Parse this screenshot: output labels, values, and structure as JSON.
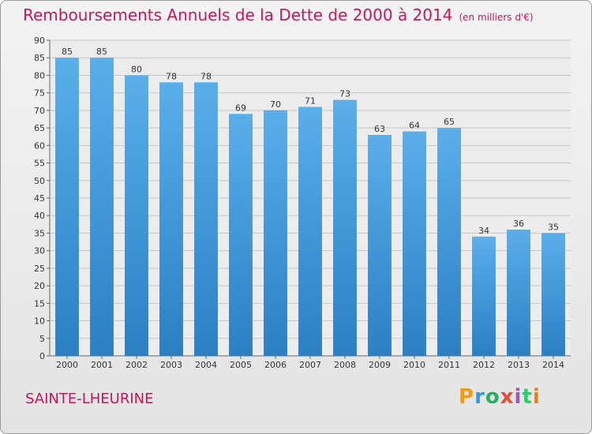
{
  "title": "Remboursements Annuels de la Dette de 2000 à 2014",
  "unit": "(en milliers d'€)",
  "town": "SAINTE-LHEURINE",
  "logo": {
    "text": "Proxiti",
    "colors": [
      "#f39c12",
      "#3498db",
      "#27ae60",
      "#e74c3c",
      "#9b59b6",
      "#2ecc71",
      "#e67e22"
    ]
  },
  "colors": {
    "bar": "#4a9de0",
    "title": "#c2185b"
  },
  "chart_data": {
    "type": "bar",
    "categories": [
      "2000",
      "2001",
      "2002",
      "2003",
      "2004",
      "2005",
      "2006",
      "2007",
      "2008",
      "2009",
      "2010",
      "2011",
      "2012",
      "2013",
      "2014"
    ],
    "values": [
      85,
      85,
      80,
      78,
      78,
      69,
      70,
      71,
      73,
      63,
      64,
      65,
      34,
      36,
      35
    ],
    "ylim": [
      0,
      90
    ],
    "yticks": [
      0,
      5,
      10,
      15,
      20,
      25,
      30,
      35,
      40,
      45,
      50,
      55,
      60,
      65,
      70,
      75,
      80,
      85,
      90
    ],
    "grid": true,
    "data_labels": true
  }
}
